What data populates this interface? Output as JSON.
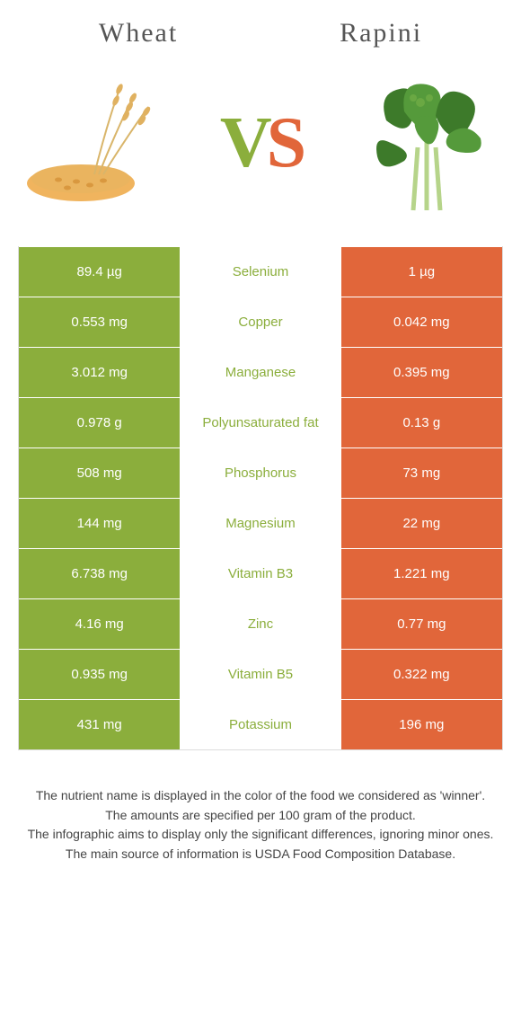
{
  "header": {
    "left_title": "Wheat",
    "right_title": "Rapini",
    "vs_v": "V",
    "vs_s": "S"
  },
  "colors": {
    "left": "#8bae3c",
    "right": "#e1663a",
    "middle_bg": "#ffffff",
    "border": "#dddddd"
  },
  "rows": [
    {
      "left": "89.4 µg",
      "label": "Selenium",
      "right": "1 µg",
      "winner": "left"
    },
    {
      "left": "0.553 mg",
      "label": "Copper",
      "right": "0.042 mg",
      "winner": "left"
    },
    {
      "left": "3.012 mg",
      "label": "Manganese",
      "right": "0.395 mg",
      "winner": "left"
    },
    {
      "left": "0.978 g",
      "label": "Polyunsaturated fat",
      "right": "0.13 g",
      "winner": "left"
    },
    {
      "left": "508 mg",
      "label": "Phosphorus",
      "right": "73 mg",
      "winner": "left"
    },
    {
      "left": "144 mg",
      "label": "Magnesium",
      "right": "22 mg",
      "winner": "left"
    },
    {
      "left": "6.738 mg",
      "label": "Vitamin B3",
      "right": "1.221 mg",
      "winner": "left"
    },
    {
      "left": "4.16 mg",
      "label": "Zinc",
      "right": "0.77 mg",
      "winner": "left"
    },
    {
      "left": "0.935 mg",
      "label": "Vitamin B5",
      "right": "0.322 mg",
      "winner": "left"
    },
    {
      "left": "431 mg",
      "label": "Potassium",
      "right": "196 mg",
      "winner": "left"
    }
  ],
  "footer": {
    "line1": "The nutrient name is displayed in the color of the food we considered as 'winner'.",
    "line2": "The amounts are specified per 100 gram of the product.",
    "line3": "The infographic aims to display only the significant differences, ignoring minor ones.",
    "line4": "The main source of information is USDA Food Composition Database."
  }
}
